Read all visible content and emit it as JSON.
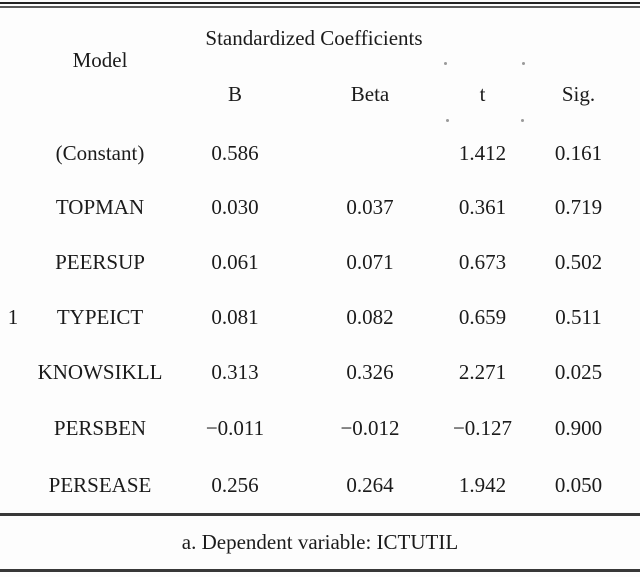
{
  "table": {
    "span_header": "Standardized Coefficients",
    "model_header": "Model",
    "model_number": "1",
    "columns": [
      "B",
      "Beta",
      "t",
      "Sig."
    ],
    "rows": [
      {
        "label": "(Constant)",
        "b": "0.586",
        "beta": "",
        "t": "1.412",
        "sig": "0.161"
      },
      {
        "label": "TOPMAN",
        "b": "0.030",
        "beta": "0.037",
        "t": "0.361",
        "sig": "0.719"
      },
      {
        "label": "PEERSUP",
        "b": "0.061",
        "beta": "0.071",
        "t": "0.673",
        "sig": "0.502"
      },
      {
        "label": "TYPEICT",
        "b": "0.081",
        "beta": "0.082",
        "t": "0.659",
        "sig": "0.511"
      },
      {
        "label": "KNOWSIKLL",
        "b": "0.313",
        "beta": "0.326",
        "t": "2.271",
        "sig": "0.025"
      },
      {
        "label": "PERSBEN",
        "b": "−0.011",
        "beta": "−0.012",
        "t": "−0.127",
        "sig": "0.900"
      },
      {
        "label": "PERSEASE",
        "b": "0.256",
        "beta": "0.264",
        "t": "1.942",
        "sig": "0.050"
      }
    ],
    "footnote": "a. Dependent variable: ICTUTIL"
  }
}
